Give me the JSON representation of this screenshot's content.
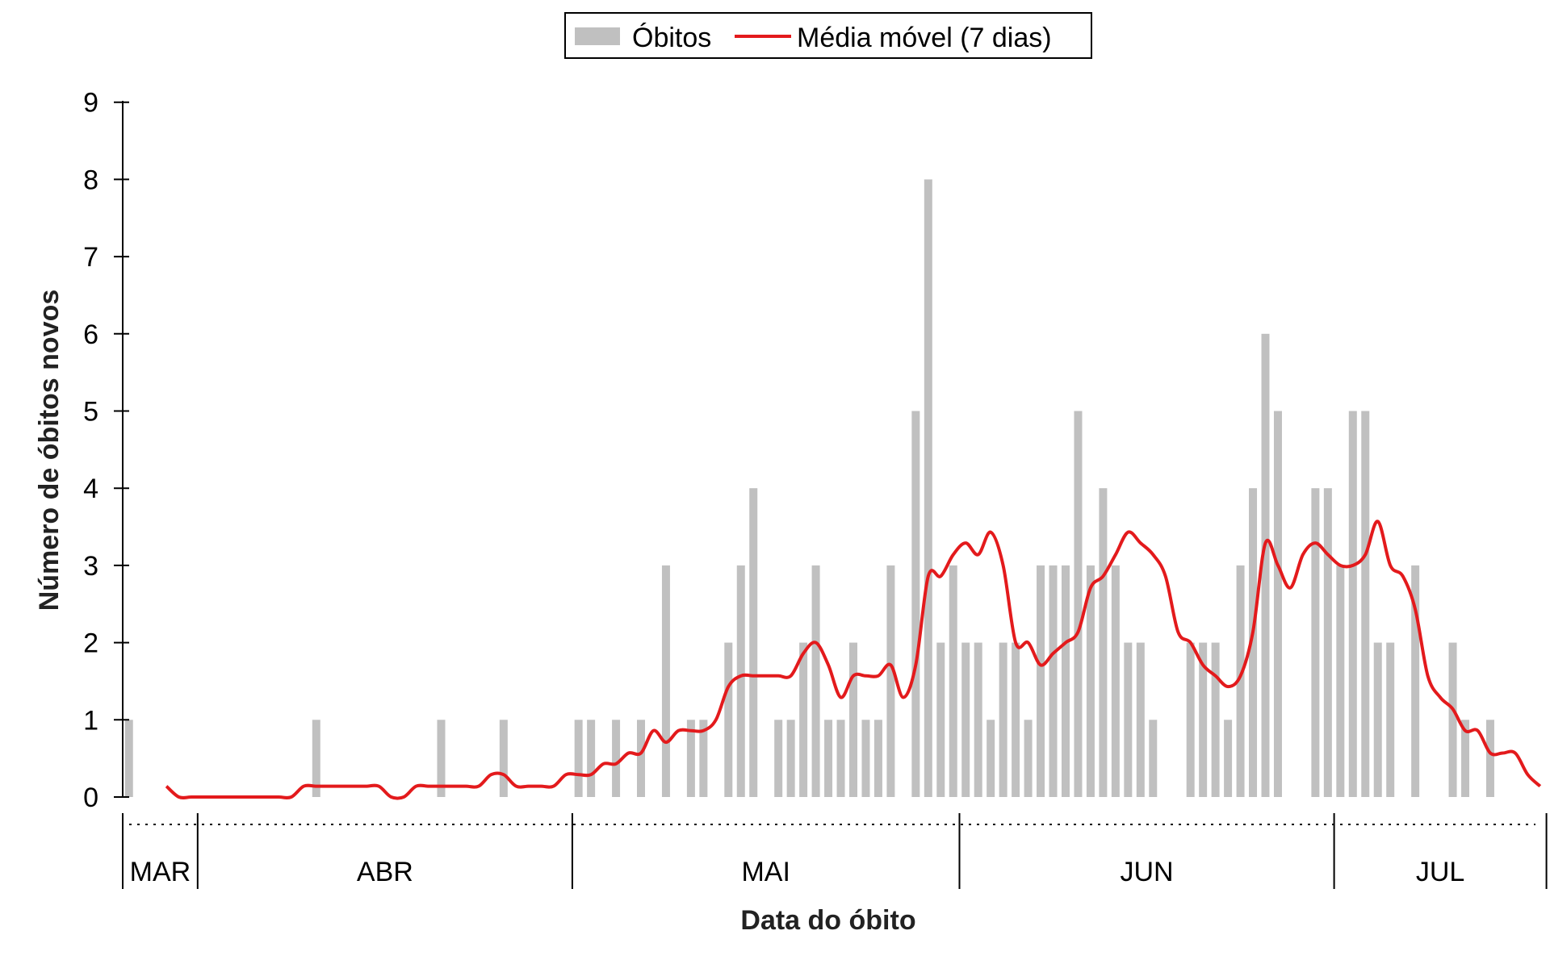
{
  "chart_data": {
    "type": "bar",
    "xlabel": "Data do óbito",
    "ylabel": "Número de óbitos novos",
    "ylim": [
      0,
      9
    ],
    "yticks": [
      0,
      1,
      2,
      3,
      4,
      5,
      6,
      7,
      8,
      9
    ],
    "months": [
      {
        "label": "MAR",
        "start_day": 0,
        "end_day": 6
      },
      {
        "label": "ABR",
        "start_day": 6,
        "end_day": 36
      },
      {
        "label": "MAI",
        "start_day": 36,
        "end_day": 67
      },
      {
        "label": "JUN",
        "start_day": 67,
        "end_day": 97
      },
      {
        "label": "JUL",
        "start_day": 97,
        "end_day": 114
      }
    ],
    "legend": {
      "position": "top-center",
      "entries": [
        "Óbitos",
        "Média móvel (7 dias)"
      ]
    },
    "series": [
      {
        "name": "Óbitos",
        "kind": "bar",
        "color": "#c0c0c0",
        "values": [
          1,
          0,
          0,
          0,
          0,
          0,
          0,
          0,
          0,
          0,
          0,
          0,
          0,
          0,
          0,
          1,
          0,
          0,
          0,
          0,
          0,
          0,
          0,
          0,
          0,
          1,
          0,
          0,
          0,
          0,
          1,
          0,
          0,
          0,
          0,
          0,
          1,
          1,
          0,
          1,
          0,
          1,
          0,
          3,
          0,
          1,
          1,
          0,
          2,
          3,
          4,
          0,
          1,
          1,
          2,
          3,
          1,
          1,
          2,
          1,
          1,
          3,
          0,
          5,
          8,
          2,
          3,
          2,
          2,
          1,
          2,
          2,
          1,
          3,
          3,
          3,
          5,
          3,
          4,
          3,
          2,
          2,
          1,
          0,
          0,
          2,
          2,
          2,
          1,
          3,
          4,
          6,
          5,
          0,
          0,
          4,
          4,
          3,
          5,
          5,
          2,
          2,
          0,
          3,
          0,
          0,
          2,
          1,
          0,
          1,
          0
        ]
      },
      {
        "name": "Média móvel (7 dias)",
        "kind": "line",
        "color": "#e31a1c",
        "start_day": 3.5,
        "values": [
          0.14,
          0,
          0,
          0,
          0,
          0,
          0,
          0,
          0,
          0,
          0,
          0.14,
          0.14,
          0.14,
          0.14,
          0.14,
          0.14,
          0.14,
          0,
          0,
          0.14,
          0.14,
          0.14,
          0.14,
          0.14,
          0.14,
          0.29,
          0.29,
          0.14,
          0.14,
          0.14,
          0.14,
          0.29,
          0.29,
          0.29,
          0.43,
          0.43,
          0.57,
          0.57,
          0.86,
          0.71,
          0.86,
          0.86,
          0.86,
          1.0,
          1.43,
          1.57,
          1.57,
          1.57,
          1.57,
          1.57,
          1.86,
          2.0,
          1.71,
          1.29,
          1.57,
          1.57,
          1.57,
          1.71,
          1.29,
          1.71,
          2.86,
          2.86,
          3.14,
          3.29,
          3.14,
          3.43,
          3.0,
          2.0,
          2.0,
          1.71,
          1.86,
          2.0,
          2.14,
          2.71,
          2.86,
          3.14,
          3.43,
          3.29,
          3.14,
          2.86,
          2.14,
          2.0,
          1.71,
          1.57,
          1.43,
          1.57,
          2.14,
          3.29,
          3.0,
          2.71,
          3.14,
          3.29,
          3.14,
          3.0,
          3.0,
          3.14,
          3.57,
          3.0,
          2.86,
          2.43,
          1.57,
          1.29,
          1.14,
          0.86,
          0.86,
          0.57,
          0.57,
          0.57,
          0.29,
          0.14
        ]
      }
    ]
  }
}
